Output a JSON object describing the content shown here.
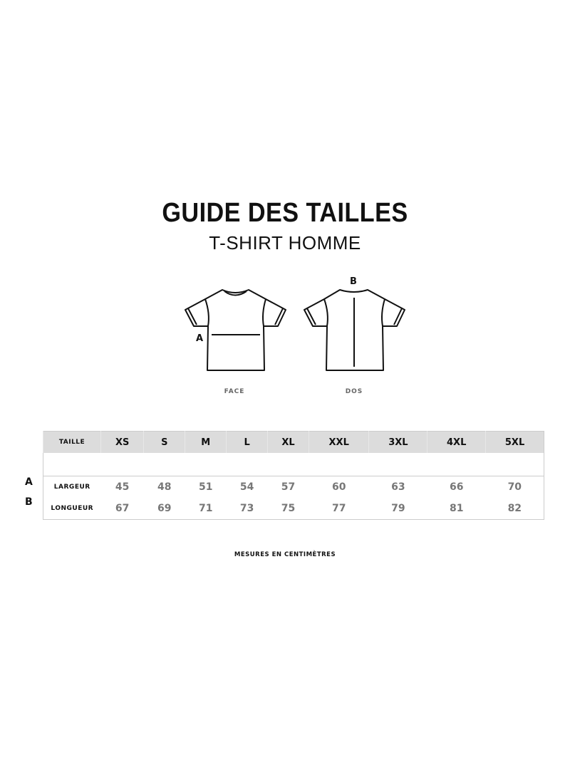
{
  "title": "GUIDE DES TAILLES",
  "subtitle": "T-SHIRT HOMME",
  "diagrams": {
    "front_label": "FACE",
    "back_label": "DOS",
    "marker_a": "A",
    "marker_b": "B"
  },
  "table": {
    "header_label": "TAILLE",
    "sizes": [
      "XS",
      "S",
      "M",
      "L",
      "XL",
      "XXL",
      "3XL",
      "4XL",
      "5XL"
    ],
    "rows": [
      {
        "key": "A",
        "label": "LARGEUR",
        "values": [
          "45",
          "48",
          "51",
          "54",
          "57",
          "60",
          "63",
          "66",
          "70"
        ]
      },
      {
        "key": "B",
        "label": "LONGUEUR",
        "values": [
          "67",
          "69",
          "71",
          "73",
          "75",
          "77",
          "79",
          "81",
          "82"
        ]
      }
    ]
  },
  "note": "MESURES EN CENTIMÈTRES",
  "colors": {
    "header_bg": "#dcdcdc",
    "value_text": "#777777"
  }
}
